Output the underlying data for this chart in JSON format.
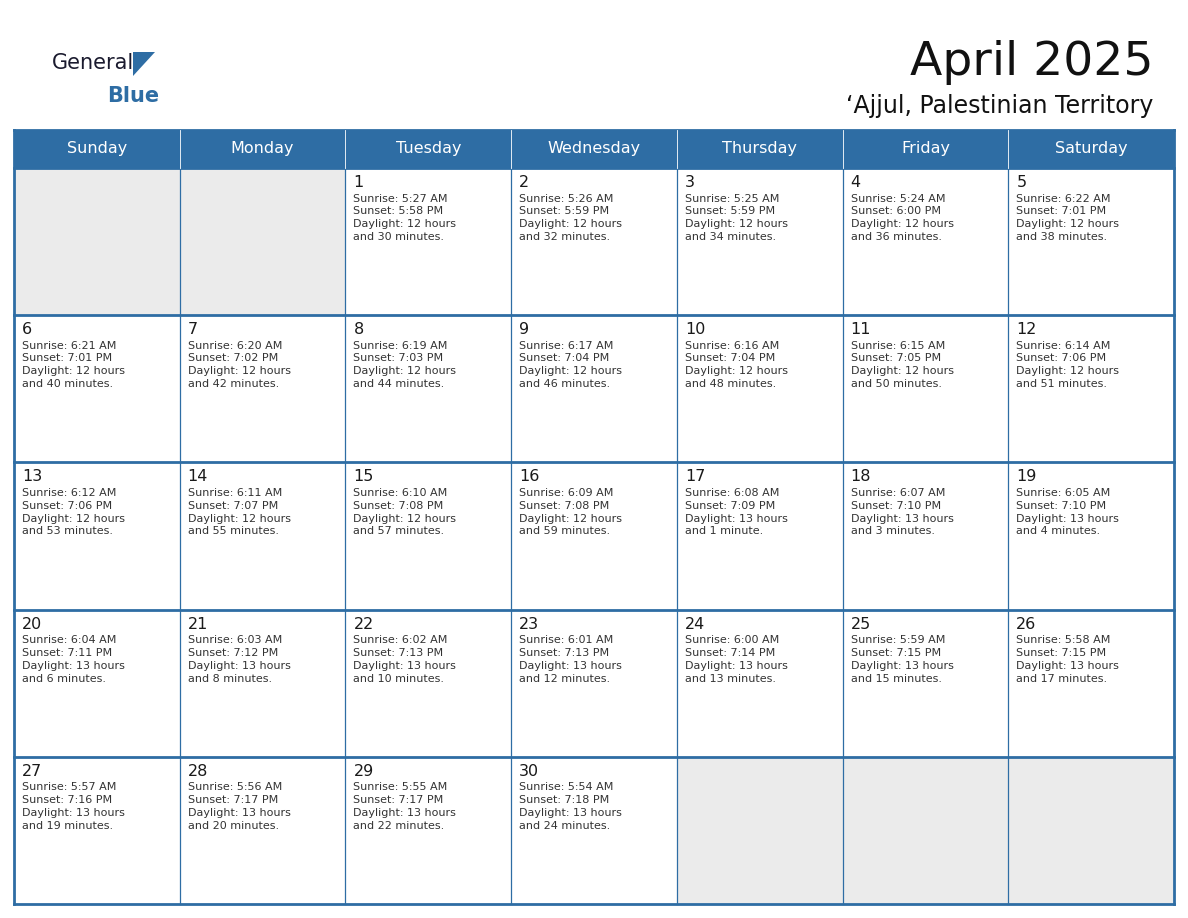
{
  "title": "April 2025",
  "subtitle": "‘Ajjul, Palestinian Territory",
  "header_bg": "#2E6DA4",
  "header_text_color": "#FFFFFF",
  "cell_bg_white": "#FFFFFF",
  "cell_bg_gray": "#EBEBEB",
  "border_color": "#2E6DA4",
  "day_number_color": "#1a1a1a",
  "cell_text_color": "#333333",
  "days_of_week": [
    "Sunday",
    "Monday",
    "Tuesday",
    "Wednesday",
    "Thursday",
    "Friday",
    "Saturday"
  ],
  "weeks": [
    [
      {
        "day": "",
        "info": ""
      },
      {
        "day": "",
        "info": ""
      },
      {
        "day": "1",
        "info": "Sunrise: 5:27 AM\nSunset: 5:58 PM\nDaylight: 12 hours\nand 30 minutes."
      },
      {
        "day": "2",
        "info": "Sunrise: 5:26 AM\nSunset: 5:59 PM\nDaylight: 12 hours\nand 32 minutes."
      },
      {
        "day": "3",
        "info": "Sunrise: 5:25 AM\nSunset: 5:59 PM\nDaylight: 12 hours\nand 34 minutes."
      },
      {
        "day": "4",
        "info": "Sunrise: 5:24 AM\nSunset: 6:00 PM\nDaylight: 12 hours\nand 36 minutes."
      },
      {
        "day": "5",
        "info": "Sunrise: 6:22 AM\nSunset: 7:01 PM\nDaylight: 12 hours\nand 38 minutes."
      }
    ],
    [
      {
        "day": "6",
        "info": "Sunrise: 6:21 AM\nSunset: 7:01 PM\nDaylight: 12 hours\nand 40 minutes."
      },
      {
        "day": "7",
        "info": "Sunrise: 6:20 AM\nSunset: 7:02 PM\nDaylight: 12 hours\nand 42 minutes."
      },
      {
        "day": "8",
        "info": "Sunrise: 6:19 AM\nSunset: 7:03 PM\nDaylight: 12 hours\nand 44 minutes."
      },
      {
        "day": "9",
        "info": "Sunrise: 6:17 AM\nSunset: 7:04 PM\nDaylight: 12 hours\nand 46 minutes."
      },
      {
        "day": "10",
        "info": "Sunrise: 6:16 AM\nSunset: 7:04 PM\nDaylight: 12 hours\nand 48 minutes."
      },
      {
        "day": "11",
        "info": "Sunrise: 6:15 AM\nSunset: 7:05 PM\nDaylight: 12 hours\nand 50 minutes."
      },
      {
        "day": "12",
        "info": "Sunrise: 6:14 AM\nSunset: 7:06 PM\nDaylight: 12 hours\nand 51 minutes."
      }
    ],
    [
      {
        "day": "13",
        "info": "Sunrise: 6:12 AM\nSunset: 7:06 PM\nDaylight: 12 hours\nand 53 minutes."
      },
      {
        "day": "14",
        "info": "Sunrise: 6:11 AM\nSunset: 7:07 PM\nDaylight: 12 hours\nand 55 minutes."
      },
      {
        "day": "15",
        "info": "Sunrise: 6:10 AM\nSunset: 7:08 PM\nDaylight: 12 hours\nand 57 minutes."
      },
      {
        "day": "16",
        "info": "Sunrise: 6:09 AM\nSunset: 7:08 PM\nDaylight: 12 hours\nand 59 minutes."
      },
      {
        "day": "17",
        "info": "Sunrise: 6:08 AM\nSunset: 7:09 PM\nDaylight: 13 hours\nand 1 minute."
      },
      {
        "day": "18",
        "info": "Sunrise: 6:07 AM\nSunset: 7:10 PM\nDaylight: 13 hours\nand 3 minutes."
      },
      {
        "day": "19",
        "info": "Sunrise: 6:05 AM\nSunset: 7:10 PM\nDaylight: 13 hours\nand 4 minutes."
      }
    ],
    [
      {
        "day": "20",
        "info": "Sunrise: 6:04 AM\nSunset: 7:11 PM\nDaylight: 13 hours\nand 6 minutes."
      },
      {
        "day": "21",
        "info": "Sunrise: 6:03 AM\nSunset: 7:12 PM\nDaylight: 13 hours\nand 8 minutes."
      },
      {
        "day": "22",
        "info": "Sunrise: 6:02 AM\nSunset: 7:13 PM\nDaylight: 13 hours\nand 10 minutes."
      },
      {
        "day": "23",
        "info": "Sunrise: 6:01 AM\nSunset: 7:13 PM\nDaylight: 13 hours\nand 12 minutes."
      },
      {
        "day": "24",
        "info": "Sunrise: 6:00 AM\nSunset: 7:14 PM\nDaylight: 13 hours\nand 13 minutes."
      },
      {
        "day": "25",
        "info": "Sunrise: 5:59 AM\nSunset: 7:15 PM\nDaylight: 13 hours\nand 15 minutes."
      },
      {
        "day": "26",
        "info": "Sunrise: 5:58 AM\nSunset: 7:15 PM\nDaylight: 13 hours\nand 17 minutes."
      }
    ],
    [
      {
        "day": "27",
        "info": "Sunrise: 5:57 AM\nSunset: 7:16 PM\nDaylight: 13 hours\nand 19 minutes."
      },
      {
        "day": "28",
        "info": "Sunrise: 5:56 AM\nSunset: 7:17 PM\nDaylight: 13 hours\nand 20 minutes."
      },
      {
        "day": "29",
        "info": "Sunrise: 5:55 AM\nSunset: 7:17 PM\nDaylight: 13 hours\nand 22 minutes."
      },
      {
        "day": "30",
        "info": "Sunrise: 5:54 AM\nSunset: 7:18 PM\nDaylight: 13 hours\nand 24 minutes."
      },
      {
        "day": "",
        "info": ""
      },
      {
        "day": "",
        "info": ""
      },
      {
        "day": "",
        "info": ""
      }
    ]
  ]
}
